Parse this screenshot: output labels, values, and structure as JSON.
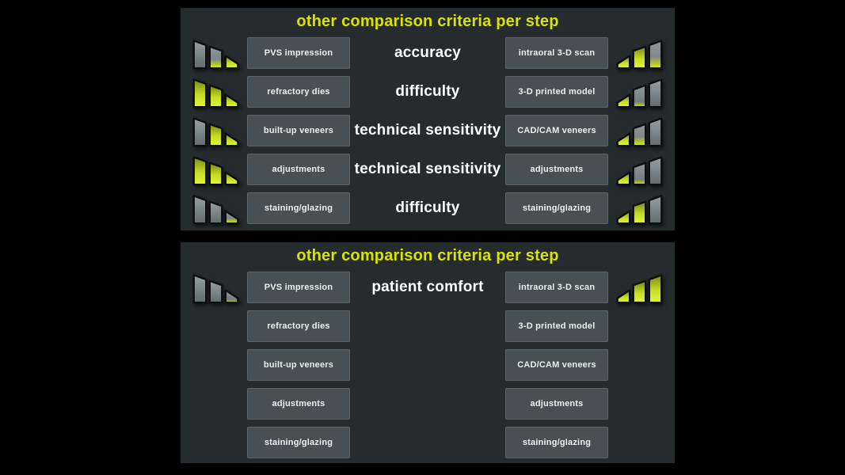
{
  "slide": {
    "panel_title": "other comparison criteria per step"
  },
  "colors": {
    "background": "#000000",
    "panel_background": "#262b2d",
    "box_background": "#475054",
    "box_border": "#5a6467",
    "title_text": "#d9e300",
    "criterion_text": "#ffffff",
    "label_text": "#eef1f1",
    "bar_yellow_bright": "#e3f73c",
    "bar_yellow_dark": "#758612",
    "bar_gray_light": "#97a0a2",
    "bar_gray_dark": "#636b6e",
    "bar_outline": "#0c0e0f"
  },
  "panels": [
    {
      "title": "other comparison criteria per step",
      "rows": [
        {
          "left_icon": [
            "gray",
            "half",
            "full"
          ],
          "left_step": "PVS impression",
          "criterion": "accuracy",
          "right_step": "intraoral 3-D scan",
          "right_icon": [
            "full",
            "full",
            "half"
          ]
        },
        {
          "left_icon": [
            "full",
            "full",
            "full"
          ],
          "left_step": "refractory dies",
          "criterion": "difficulty",
          "right_step": "3-D printed model",
          "right_icon": [
            "full",
            "low",
            "gray"
          ]
        },
        {
          "left_icon": [
            "gray",
            "full",
            "full"
          ],
          "left_step": "built-up veneers",
          "criterion": "technical sensitivity",
          "right_step": "CAD/CAM veneers",
          "right_icon": [
            "full",
            "half",
            "gray"
          ]
        },
        {
          "left_icon": [
            "full",
            "full",
            "full"
          ],
          "left_step": "adjustments",
          "criterion": "technical sensitivity",
          "right_step": "adjustments",
          "right_icon": [
            "full",
            "low",
            "gray"
          ]
        },
        {
          "left_icon": [
            "gray",
            "gray",
            "half"
          ],
          "left_step": "staining/glazing",
          "criterion": "difficulty",
          "right_step": "staining/glazing",
          "right_icon": [
            "full",
            "full",
            "gray"
          ]
        }
      ]
    },
    {
      "title": "other comparison criteria per step",
      "rows": [
        {
          "left_icon": [
            "gray",
            "gray",
            "low"
          ],
          "left_step": "PVS impression",
          "criterion": "patient comfort",
          "right_step": "intraoral 3-D scan",
          "right_icon": [
            "full",
            "full",
            "full"
          ]
        },
        {
          "left_step": "refractory dies",
          "right_step": "3-D printed model"
        },
        {
          "left_step": "built-up veneers",
          "right_step": "CAD/CAM veneers"
        },
        {
          "left_step": "adjustments",
          "right_step": "adjustments"
        },
        {
          "left_step": "staining/glazing",
          "right_step": "staining/glazing"
        }
      ]
    }
  ]
}
